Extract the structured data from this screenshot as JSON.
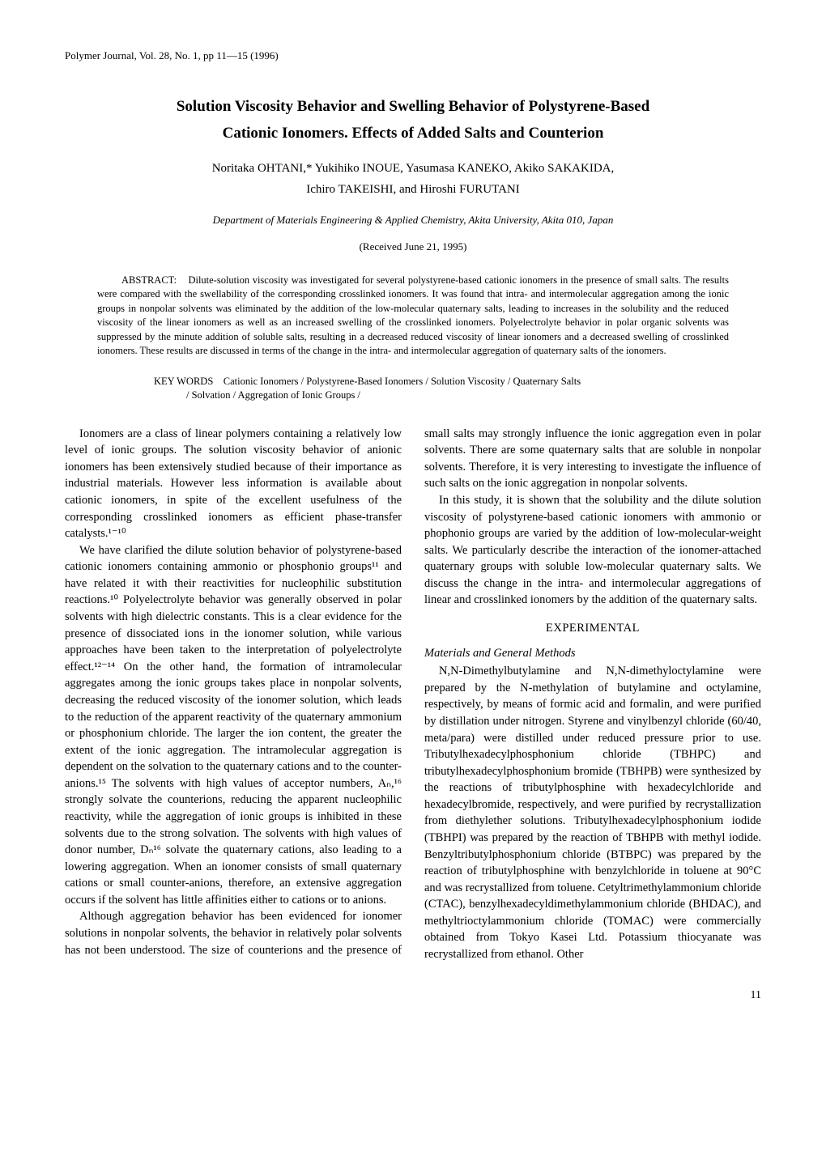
{
  "journal_header": "Polymer Journal, Vol. 28, No. 1, pp 11—15 (1996)",
  "title_line1": "Solution Viscosity Behavior and Swelling Behavior of Polystyrene-Based",
  "title_line2": "Cationic Ionomers. Effects of Added Salts and Counterion",
  "authors_line1": "Noritaka OHTANI,* Yukihiko INOUE, Yasumasa KANEKO, Akiko SAKAKIDA,",
  "authors_line2": "Ichiro TAKEISHI, and Hiroshi FURUTANI",
  "affiliation": "Department of Materials Engineering & Applied Chemistry, Akita University, Akita 010, Japan",
  "received": "(Received June 21, 1995)",
  "abstract_label": "ABSTRACT:",
  "abstract_text": "Dilute-solution viscosity was investigated for several polystyrene-based cationic ionomers in the presence of small salts. The results were compared with the swellability of the corresponding crosslinked ionomers. It was found that intra- and intermolecular aggregation among the ionic groups in nonpolar solvents was eliminated by the addition of the low-molecular quaternary salts, leading to increases in the solubility and the reduced viscosity of the linear ionomers as well as an increased swelling of the crosslinked ionomers. Polyelectrolyte behavior in polar organic solvents was suppressed by the minute addition of soluble salts, resulting in a decreased reduced viscosity of linear ionomers and a decreased swelling of crosslinked ionomers. These results are discussed in terms of the change in the intra- and intermolecular aggregation of quaternary salts of the ionomers.",
  "keywords_label": "KEY WORDS",
  "keywords_line1": "Cationic Ionomers / Polystyrene-Based Ionomers / Solution Viscosity / Quaternary Salts",
  "keywords_line2": "/ Solvation / Aggregation of Ionic Groups /",
  "body": {
    "p1": "Ionomers are a class of linear polymers containing a relatively low level of ionic groups. The solution viscosity behavior of anionic ionomers has been extensively studied because of their importance as industrial materials. However less information is available about cationic ionomers, in spite of the excellent usefulness of the corresponding crosslinked ionomers as efficient phase-transfer catalysts.¹⁻¹⁰",
    "p2": "We have clarified the dilute solution behavior of polystyrene-based cationic ionomers containing ammonio or phosphonio groups¹¹ and have related it with their reactivities for nucleophilic substitution reactions.¹⁰ Polyelectrolyte behavior was generally observed in polar solvents with high dielectric constants. This is a clear evidence for the presence of dissociated ions in the ionomer solution, while various approaches have been taken to the interpretation of polyelectrolyte effect.¹²⁻¹⁴ On the other hand, the formation of intramolecular aggregates among the ionic groups takes place in nonpolar solvents, decreasing the reduced viscosity of the ionomer solution, which leads to the reduction of the apparent reactivity of the quaternary ammonium or phosphonium chloride. The larger the ion content, the greater the extent of the ionic aggregation. The intramolecular aggregation is dependent on the solvation to the quaternary cations and to the counter-anions.¹⁵ The solvents with high values of acceptor numbers, Aₙ,¹⁶ strongly solvate the counterions, reducing the apparent nucleophilic reactivity, while the aggregation of ionic groups is inhibited in these solvents due to the strong solvation. The solvents with high values of donor number, Dₙ¹⁶ solvate the quaternary cations, also leading to a lowering aggregation. When an ionomer consists of small quaternary cations or small counter-anions, therefore, an extensive aggregation occurs if the solvent has little affinities either to cations or to anions.",
    "p3": "Although aggregation behavior has been evidenced for ionomer solutions in nonpolar solvents, the behavior in relatively polar solvents has not been understood. The size of counterions and the presence of small salts may strongly influence the ionic aggregation even in polar solvents. There are some quaternary salts that are soluble in nonpolar solvents. Therefore, it is very interesting to investigate the influence of such salts on the ionic aggregation in nonpolar solvents.",
    "p4": "In this study, it is shown that the solubility and the dilute solution viscosity of polystyrene-based cationic ionomers with ammonio or phophonio groups are varied by the addition of low-molecular-weight salts. We particularly describe the interaction of the ionomer-attached quaternary groups with soluble low-molecular quaternary salts. We discuss the change in the intra- and intermolecular aggregations of linear and crosslinked ionomers by the addition of the quaternary salts.",
    "experimental_heading": "EXPERIMENTAL",
    "materials_heading": "Materials and General Methods",
    "p5": "N,N-Dimethylbutylamine and N,N-dimethyloctylamine were prepared by the N-methylation of butylamine and octylamine, respectively, by means of formic acid and formalin, and were purified by distillation under nitrogen. Styrene and vinylbenzyl chloride (60/40, meta/para) were distilled under reduced pressure prior to use. Tributylhexadecylphosphonium chloride (TBHPC) and tributylhexadecylphosphonium bromide (TBHPB) were synthesized by the reactions of tributylphosphine with hexadecylchloride and hexadecylbromide, respectively, and were purified by recrystallization from diethylether solutions. Tributylhexadecylphosphonium iodide (TBHPI) was prepared by the reaction of TBHPB with methyl iodide. Benzyltributylphosphonium chloride (BTBPC) was prepared by the reaction of tributylphosphine with benzylchloride in toluene at 90°C and was recrystallized from toluene. Cetyltrimethylammonium chloride (CTAC), benzylhexadecyldimethylammonium chloride (BHDAC), and methyltrioctylammonium chloride (TOMAC) were commercially obtained from Tokyo Kasei Ltd. Potassium thiocyanate was recrystallized from ethanol. Other"
  },
  "page_number": "11"
}
